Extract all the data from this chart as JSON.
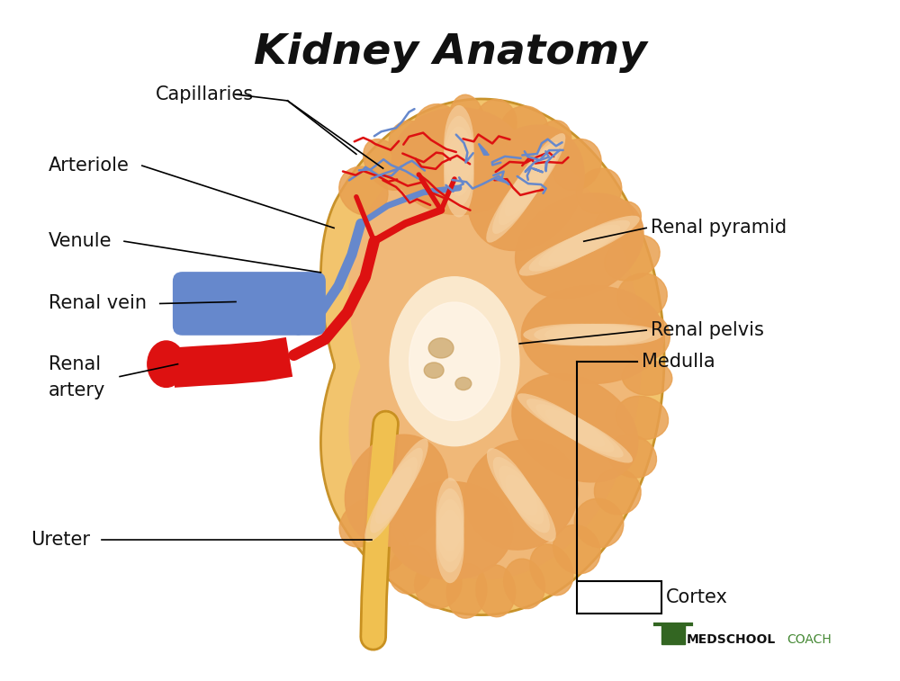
{
  "title": "Kidney Anatomy",
  "title_fontsize": 34,
  "bg_color": "#ffffff",
  "kidney_outer_color": "#F2C46D",
  "kidney_border_color": "#C8922A",
  "kidney_inner_color": "#F0B878",
  "cortex_bump_color": "#E8A050",
  "medulla_color": "#ECA860",
  "pyramid_color": "#E8A055",
  "pyramid_stripe_color": "#F5D0A0",
  "renal_pelvis_color": "#FAE8CC",
  "renal_pelvis_glow": "#FFF5E8",
  "renal_artery_color": "#DD1111",
  "renal_vein_color": "#6688CC",
  "ureter_color": "#F0C050",
  "ureter_border_color": "#C89020",
  "cap_red_color": "#DD1111",
  "cap_blue_color": "#6688CC",
  "label_fontsize": 15,
  "logo_bold": "MEDSCHOOL",
  "logo_light": "COACH",
  "logo_bold_color": "#111111",
  "logo_light_color": "#448833"
}
